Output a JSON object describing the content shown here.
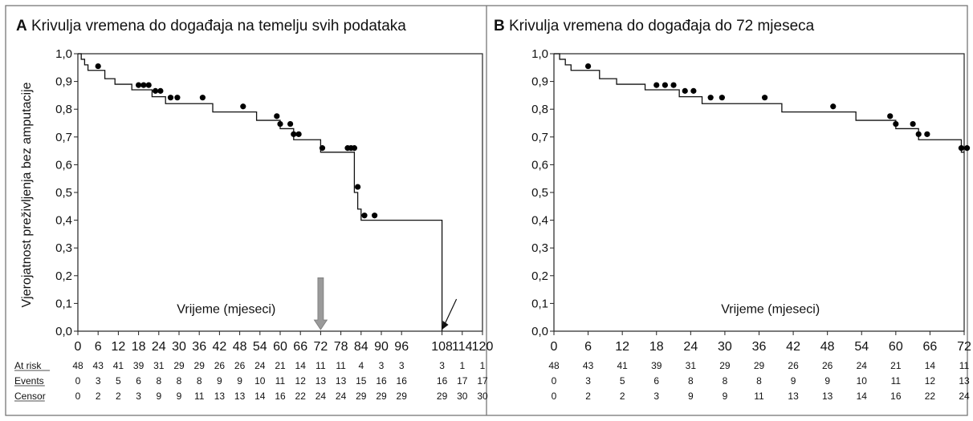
{
  "chart_data": [
    {
      "type": "line",
      "panel_letter": "A",
      "title": "Krivulja vremena do događaja na temelju svih podataka",
      "ylabel": "Vjerojatnost preživljenja bez amputacije",
      "xlabel": "Vrijeme  (mjeseci)",
      "xlim": [
        0,
        120
      ],
      "ylim": [
        0,
        1
      ],
      "x_ticks": [
        0,
        6,
        12,
        18,
        24,
        30,
        36,
        42,
        48,
        54,
        60,
        66,
        72,
        78,
        84,
        90,
        96,
        108,
        114,
        120
      ],
      "x_tick_labels": [
        "0",
        "6",
        "12",
        "18",
        "24",
        "30",
        "36",
        "42",
        "48",
        "54",
        "60",
        "66",
        "72",
        "78",
        "84",
        "90",
        "96",
        "108",
        "114",
        "120"
      ],
      "y_ticks": [
        0,
        0.1,
        0.2,
        0.3,
        0.4,
        0.5,
        0.6,
        0.7,
        0.8,
        0.9,
        1.0
      ],
      "y_tick_labels": [
        "0,0",
        "0,1",
        "0,2",
        "0,3",
        "0,4",
        "0,5",
        "0,6",
        "0,7",
        "0,8",
        "0,9",
        "1,0"
      ],
      "survival_steps": [
        [
          0,
          1.0
        ],
        [
          1,
          0.98
        ],
        [
          2,
          0.96
        ],
        [
          3,
          0.94
        ],
        [
          8,
          0.91
        ],
        [
          11,
          0.89
        ],
        [
          16,
          0.87
        ],
        [
          22,
          0.845
        ],
        [
          26,
          0.82
        ],
        [
          40,
          0.79
        ],
        [
          53,
          0.76
        ],
        [
          60,
          0.73
        ],
        [
          64,
          0.69
        ],
        [
          72,
          0.645
        ],
        [
          82,
          0.5
        ],
        [
          83,
          0.44
        ],
        [
          84,
          0.4
        ],
        [
          108,
          0.0
        ]
      ],
      "censor_marks": [
        [
          6,
          0.955
        ],
        [
          18,
          0.887
        ],
        [
          19.5,
          0.887
        ],
        [
          21,
          0.887
        ],
        [
          23,
          0.866
        ],
        [
          24.5,
          0.866
        ],
        [
          27.5,
          0.842
        ],
        [
          29.5,
          0.842
        ],
        [
          37,
          0.842
        ],
        [
          49,
          0.81
        ],
        [
          59,
          0.775
        ],
        [
          60,
          0.747
        ],
        [
          63,
          0.747
        ],
        [
          64,
          0.71
        ],
        [
          65.5,
          0.71
        ],
        [
          72.5,
          0.66
        ],
        [
          80,
          0.66
        ],
        [
          81,
          0.66
        ],
        [
          82,
          0.66
        ],
        [
          83,
          0.52
        ],
        [
          85,
          0.417
        ],
        [
          88,
          0.417
        ]
      ],
      "annotations": [
        {
          "type": "gray-down-arrow",
          "x": 72,
          "y": 0.1
        },
        {
          "type": "black-arrow",
          "x": 108,
          "y": 0.0
        }
      ],
      "risk_table": {
        "labels": [
          "At risk",
          "Events",
          "Censor"
        ],
        "times": [
          0,
          6,
          12,
          18,
          24,
          30,
          36,
          42,
          48,
          54,
          60,
          66,
          72,
          78,
          84,
          90,
          96,
          108,
          114,
          120
        ],
        "at_risk": [
          "48",
          "43",
          "41",
          "39",
          "31",
          "29",
          "29",
          "26",
          "26",
          "24",
          "21",
          "14",
          "11",
          "11",
          "4",
          "3",
          "3",
          "3",
          "1",
          "1"
        ],
        "events": [
          "0",
          "3",
          "5",
          "6",
          "8",
          "8",
          "8",
          "9",
          "9",
          "10",
          "11",
          "12",
          "13",
          "13",
          "15",
          "16",
          "16",
          "16",
          "17",
          "17"
        ],
        "censor": [
          "0",
          "2",
          "2",
          "3",
          "9",
          "9",
          "11",
          "13",
          "13",
          "14",
          "16",
          "22",
          "24",
          "24",
          "29",
          "29",
          "29",
          "29",
          "30",
          "30"
        ]
      }
    },
    {
      "type": "line",
      "panel_letter": "B",
      "title": "Krivulja vremena do događaja do 72 mjeseca",
      "ylabel": "",
      "xlabel": "Vrijeme  (mjeseci)",
      "xlim": [
        0,
        72
      ],
      "ylim": [
        0,
        1
      ],
      "x_ticks": [
        0,
        6,
        12,
        18,
        24,
        30,
        36,
        42,
        48,
        54,
        60,
        66,
        72
      ],
      "x_tick_labels": [
        "0",
        "6",
        "12",
        "18",
        "24",
        "30",
        "36",
        "42",
        "48",
        "54",
        "60",
        "66",
        "72"
      ],
      "y_ticks": [
        0,
        0.1,
        0.2,
        0.3,
        0.4,
        0.5,
        0.6,
        0.7,
        0.8,
        0.9,
        1.0
      ],
      "y_tick_labels": [
        "0,0",
        "0,1",
        "0,2",
        "0,3",
        "0,4",
        "0,5",
        "0,6",
        "0,7",
        "0,8",
        "0,9",
        "1,0"
      ],
      "survival_steps": [
        [
          0,
          1.0
        ],
        [
          1,
          0.98
        ],
        [
          2,
          0.96
        ],
        [
          3,
          0.94
        ],
        [
          8,
          0.91
        ],
        [
          11,
          0.89
        ],
        [
          16,
          0.87
        ],
        [
          22,
          0.845
        ],
        [
          26,
          0.82
        ],
        [
          40,
          0.79
        ],
        [
          53,
          0.76
        ],
        [
          60,
          0.73
        ],
        [
          64,
          0.69
        ],
        [
          71.5,
          0.645
        ]
      ],
      "step_end": 72,
      "censor_marks": [
        [
          6,
          0.955
        ],
        [
          18,
          0.887
        ],
        [
          19.5,
          0.887
        ],
        [
          21,
          0.887
        ],
        [
          23,
          0.866
        ],
        [
          24.5,
          0.866
        ],
        [
          27.5,
          0.842
        ],
        [
          29.5,
          0.842
        ],
        [
          37,
          0.842
        ],
        [
          49,
          0.81
        ],
        [
          59,
          0.775
        ],
        [
          60,
          0.747
        ],
        [
          63,
          0.747
        ],
        [
          64,
          0.71
        ],
        [
          65.5,
          0.71
        ],
        [
          71.5,
          0.66
        ],
        [
          72.5,
          0.66
        ]
      ],
      "annotations": [],
      "risk_table": {
        "labels": [],
        "times": [
          0,
          6,
          12,
          18,
          24,
          30,
          36,
          42,
          48,
          54,
          60,
          66,
          72
        ],
        "at_risk": [
          "48",
          "43",
          "41",
          "39",
          "31",
          "29",
          "29",
          "26",
          "26",
          "24",
          "21",
          "14",
          "11"
        ],
        "events": [
          "0",
          "3",
          "5",
          "6",
          "8",
          "8",
          "8",
          "9",
          "9",
          "10",
          "11",
          "12",
          "13"
        ],
        "censor": [
          "0",
          "2",
          "2",
          "3",
          "9",
          "9",
          "11",
          "13",
          "13",
          "14",
          "16",
          "22",
          "24"
        ]
      }
    }
  ]
}
